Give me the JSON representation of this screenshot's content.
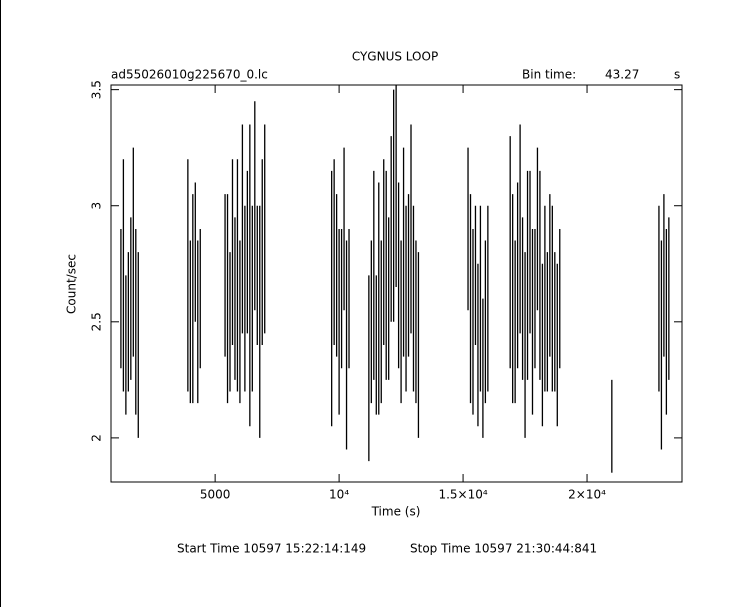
{
  "chart_data": {
    "type": "errorbar",
    "title": "CYGNUS LOOP",
    "subtitle": "ad55026010g225670_0.lc",
    "bin_time_label": "Bin time:",
    "bin_time": "43.27",
    "bin_time_unit": "s",
    "x_label": "Time (s)",
    "y_label": "Count/sec",
    "start_time": "Start Time 10597  15:22:14:149",
    "stop_time": "Stop Time 10597  21:30:44:841",
    "color": "#000000",
    "xlim": [
      800,
      23830
    ],
    "ylim": [
      1.81,
      3.52
    ],
    "xticks": [
      5000,
      {
        "value": 10000,
        "label": "10⁴"
      },
      {
        "value": 15000,
        "label": "1.5×10⁴"
      },
      {
        "value": 20000,
        "label": "2×10⁴"
      }
    ],
    "yticks": [
      2,
      2.5,
      3,
      3.5
    ],
    "x": [
      1200,
      1300,
      1400,
      1500,
      1600,
      1700,
      1800,
      1900,
      3900,
      4000,
      4100,
      4200,
      4300,
      4400,
      5400,
      5500,
      5600,
      5700,
      5800,
      5900,
      6000,
      6100,
      6200,
      6300,
      6400,
      6500,
      6600,
      6700,
      6800,
      6900,
      7000,
      9700,
      9800,
      9900,
      10000,
      10100,
      10200,
      10300,
      10400,
      11200,
      11300,
      11400,
      11500,
      11600,
      11700,
      11800,
      11900,
      12000,
      12100,
      12200,
      12300,
      12400,
      12500,
      12600,
      12700,
      12800,
      12900,
      13000,
      13100,
      13200,
      15200,
      15300,
      15400,
      15500,
      15600,
      15700,
      15800,
      15900,
      16000,
      16900,
      17000,
      17100,
      17200,
      17300,
      17400,
      17500,
      17600,
      17700,
      17800,
      17900,
      18000,
      18100,
      18200,
      18300,
      18400,
      18500,
      18600,
      18700,
      18800,
      18900,
      21000,
      22900,
      23000,
      23100,
      23200,
      23300
    ],
    "values": [
      2.6,
      2.7,
      2.4,
      2.5,
      2.6,
      2.8,
      2.5,
      2.4,
      2.7,
      2.5,
      2.6,
      2.8,
      2.5,
      2.6,
      2.7,
      2.6,
      2.5,
      2.8,
      2.6,
      2.7,
      2.5,
      2.9,
      2.6,
      2.8,
      2.7,
      2.6,
      3.0,
      2.7,
      2.5,
      2.8,
      2.9,
      2.6,
      2.8,
      2.7,
      2.5,
      2.6,
      2.9,
      2.4,
      2.6,
      2.3,
      2.5,
      2.7,
      2.4,
      2.6,
      2.5,
      2.8,
      2.7,
      2.6,
      2.9,
      3.0,
      3.1,
      2.7,
      2.5,
      2.8,
      2.6,
      2.7,
      2.9,
      2.6,
      2.5,
      2.4,
      2.9,
      2.6,
      2.5,
      2.7,
      2.4,
      2.6,
      2.3,
      2.5,
      2.6,
      2.8,
      2.6,
      2.5,
      2.7,
      2.9,
      2.6,
      2.4,
      2.7,
      2.8,
      2.5,
      2.6,
      2.9,
      2.7,
      2.4,
      2.6,
      2.5,
      2.7,
      2.6,
      2.5,
      2.4,
      2.6,
      2.05,
      2.6,
      2.4,
      2.7,
      2.5,
      2.6
    ],
    "errors": [
      0.3,
      0.5,
      0.3,
      0.3,
      0.35,
      0.45,
      0.4,
      0.4,
      0.5,
      0.35,
      0.45,
      0.3,
      0.35,
      0.3,
      0.35,
      0.45,
      0.3,
      0.4,
      0.35,
      0.5,
      0.35,
      0.45,
      0.4,
      0.35,
      0.65,
      0.4,
      0.45,
      0.3,
      0.5,
      0.4,
      0.45,
      0.55,
      0.4,
      0.35,
      0.4,
      0.3,
      0.35,
      0.45,
      0.3,
      0.4,
      0.35,
      0.45,
      0.3,
      0.5,
      0.35,
      0.4,
      0.45,
      0.35,
      0.4,
      0.5,
      0.45,
      0.4,
      0.35,
      0.45,
      0.4,
      0.35,
      0.45,
      0.4,
      0.35,
      0.4,
      0.35,
      0.45,
      0.4,
      0.3,
      0.35,
      0.4,
      0.3,
      0.35,
      0.4,
      0.5,
      0.45,
      0.35,
      0.4,
      0.45,
      0.35,
      0.4,
      0.45,
      0.35,
      0.4,
      0.3,
      0.35,
      0.45,
      0.35,
      0.4,
      0.3,
      0.35,
      0.4,
      0.3,
      0.35,
      0.3,
      0.2,
      0.4,
      0.45,
      0.35,
      0.4,
      0.35
    ]
  }
}
